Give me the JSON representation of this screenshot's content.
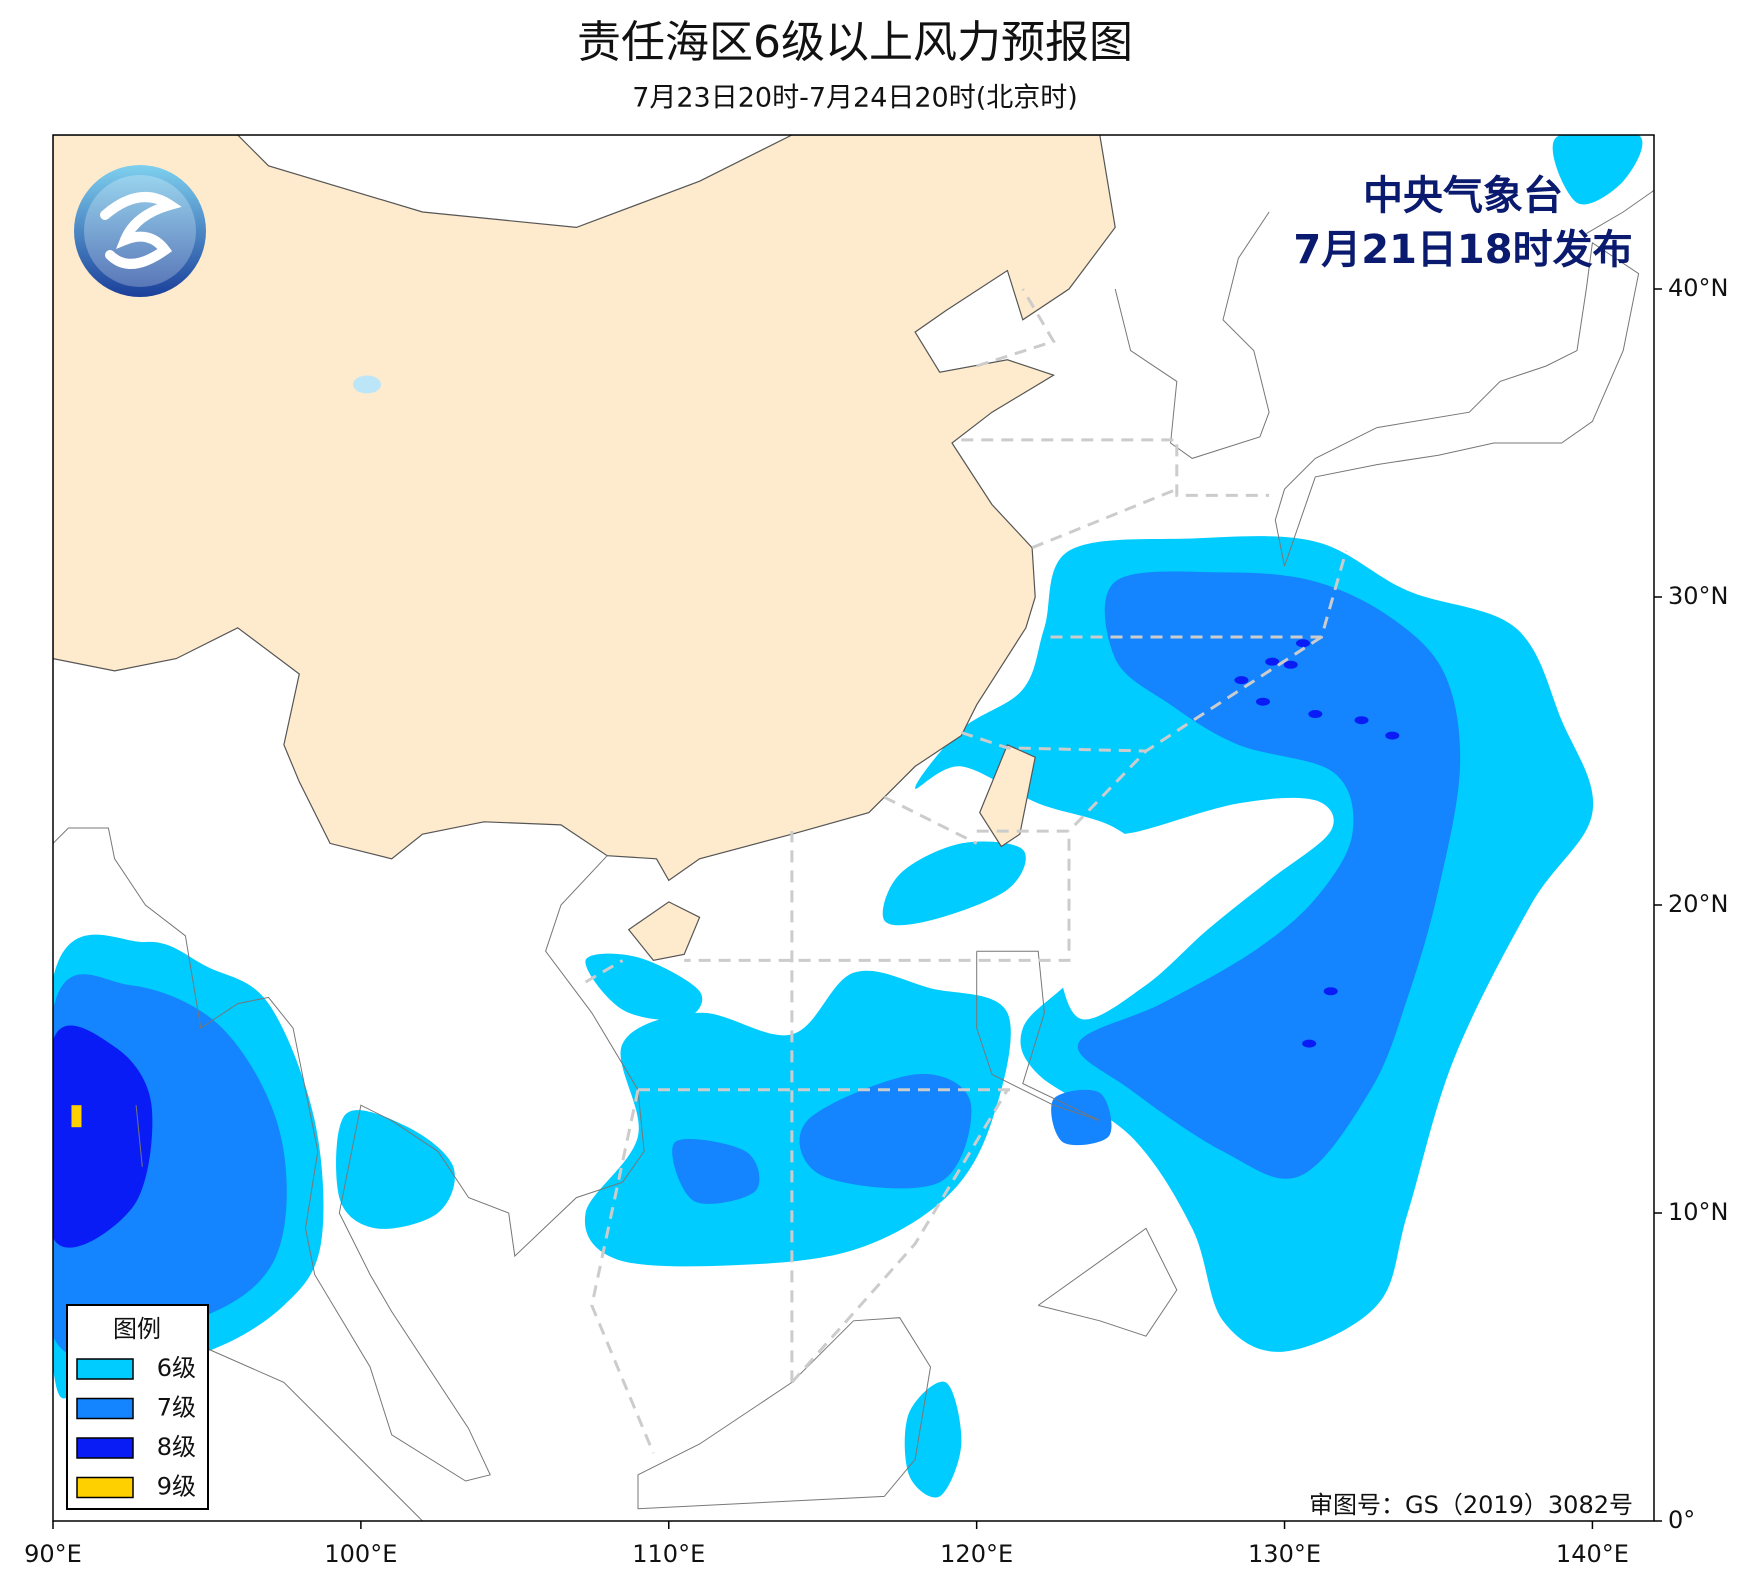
{
  "title": "责任海区6级以上风力预报图",
  "subtitle": "7月23日20时-7月24日20时(北京时)",
  "agency": "中央气象台",
  "issued": "7月21日18时发布",
  "approval": "审图号：GS（2019）3082号",
  "map": {
    "xlim": [
      90,
      142
    ],
    "ylim": [
      0,
      45
    ],
    "xticks": [
      {
        "value": 90,
        "label": "90°E"
      },
      {
        "value": 100,
        "label": "100°E"
      },
      {
        "value": 110,
        "label": "110°E"
      },
      {
        "value": 120,
        "label": "120°E"
      },
      {
        "value": 130,
        "label": "130°E"
      },
      {
        "value": 140,
        "label": "140°E"
      }
    ],
    "yticks": [
      {
        "value": 0,
        "label": "0°"
      },
      {
        "value": 10,
        "label": "10°N"
      },
      {
        "value": 20,
        "label": "20°N"
      },
      {
        "value": 30,
        "label": "30°N"
      },
      {
        "value": 40,
        "label": "40°N"
      }
    ]
  },
  "legend": {
    "title": "图例",
    "items": [
      {
        "label": "6级",
        "color": "#00ccff"
      },
      {
        "label": "7级",
        "color": "#1484ff"
      },
      {
        "label": "8级",
        "color": "#0a1cf5"
      },
      {
        "label": "9级",
        "color": "#ffd000"
      }
    ]
  }
}
